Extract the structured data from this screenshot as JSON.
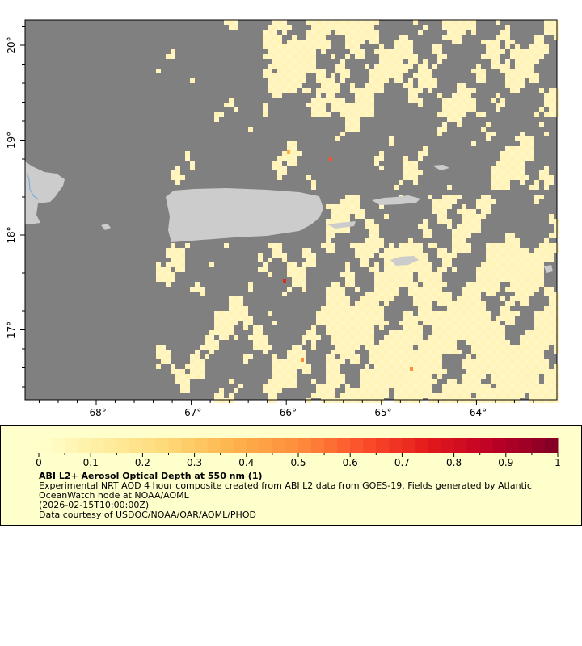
{
  "map": {
    "lon_ticks": [
      "-68°",
      "-67°",
      "-66°",
      "-65°",
      "-64°"
    ],
    "lat_ticks": [
      "20°",
      "19°",
      "18°",
      "17°"
    ],
    "lon_values": [
      -68,
      -67,
      -66,
      -65,
      -64
    ],
    "lat_values": [
      20,
      19,
      18,
      17
    ],
    "extent": {
      "lon": [
        -68.75,
        -63.15
      ],
      "lat": [
        16.3,
        20.25
      ]
    },
    "colors": {
      "ocean_nodata": "#808080",
      "land": "#cccccc",
      "river": "#6fa8dc",
      "aod_low": "#fff3b8"
    }
  },
  "legend": {
    "colorbar_labels": [
      "0",
      "0.1",
      "0.2",
      "0.3",
      "0.4",
      "0.5",
      "0.6",
      "0.7",
      "0.8",
      "0.9",
      "1"
    ],
    "range": [
      0,
      1
    ],
    "colorbar_colors": [
      "#ffffcc",
      "#ffeda0",
      "#fed976",
      "#feb24c",
      "#fd8d3c",
      "#fc4e2a",
      "#e31a1c",
      "#bd0026",
      "#800026"
    ],
    "title": "ABI L2+ Aerosol Optical Depth at 550 nm (1)",
    "line1": "Experimental NRT AOD 4 hour composite created from ABI L2 data from GOES-19. Fields generated by Atlantic",
    "line2": "OceanWatch node at NOAA/AOML",
    "line3": "(2026-02-15T10:00:00Z)",
    "line4": "Data courtesy of USDOC/NOAA/OAR/AOML/PHOD",
    "background": "#ffffcc"
  }
}
